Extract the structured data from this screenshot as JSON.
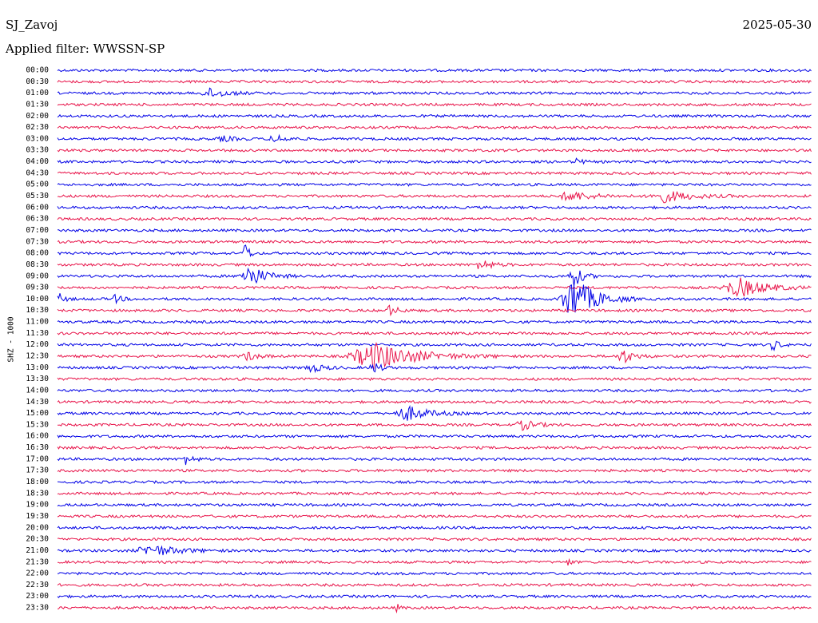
{
  "header": {
    "station": "SJ_Zavoj",
    "date": "2025-05-30",
    "filter": "Applied filter: WWSSN-SP"
  },
  "axis_label": "SHZ - 1000",
  "rows": [
    "00:00",
    "00:30",
    "01:00",
    "01:30",
    "02:00",
    "02:30",
    "03:00",
    "03:30",
    "04:00",
    "04:30",
    "05:00",
    "05:30",
    "06:00",
    "06:30",
    "07:00",
    "07:30",
    "08:00",
    "08:30",
    "09:00",
    "09:30",
    "10:00",
    "10:30",
    "11:00",
    "11:30",
    "12:00",
    "12:30",
    "13:00",
    "13:30",
    "14:00",
    "14:30",
    "15:00",
    "15:30",
    "16:00",
    "16:30",
    "17:00",
    "17:30",
    "18:00",
    "18:30",
    "19:00",
    "19:30",
    "20:00",
    "20:30",
    "21:00",
    "21:30",
    "22:00",
    "22:30",
    "23:00",
    "23:30"
  ]
}
